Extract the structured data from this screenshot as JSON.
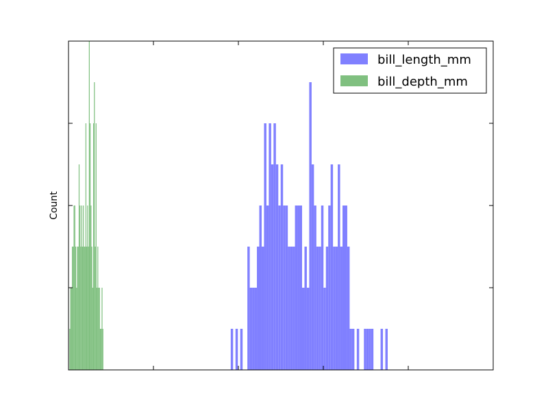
{
  "chart_data": {
    "type": "histogram",
    "title": "",
    "xlabel": "",
    "ylabel": "Count",
    "x_tick_labels_shown": false,
    "y_tick_labels_shown": false,
    "ylim": [
      0,
      8
    ],
    "grid": false,
    "legend_position": "top-right",
    "series": [
      {
        "name": "bill_length_mm",
        "color": "#8080ff",
        "bin_start": 32.1,
        "bin_width": 0.28,
        "counts": [
          1,
          0,
          1,
          0,
          1,
          0,
          0,
          3,
          2,
          2,
          2,
          3,
          4,
          3,
          6,
          4,
          6,
          5,
          6,
          5,
          4,
          5,
          4,
          4,
          3,
          3,
          3,
          4,
          4,
          4,
          2,
          3,
          2,
          7,
          5,
          4,
          3,
          3,
          4,
          2,
          3,
          4,
          5,
          3,
          3,
          5,
          3,
          4,
          4,
          3,
          1,
          1,
          0,
          1,
          0,
          0,
          1,
          1,
          1,
          1,
          0,
          0,
          0,
          1,
          0,
          1
        ]
      },
      {
        "name": "bill_depth_mm",
        "color": "#80c080",
        "bin_start": 13.1,
        "bin_width": 0.1,
        "counts": [
          1,
          2,
          2,
          3,
          3,
          4,
          4,
          3,
          2,
          3,
          3,
          5,
          4,
          3,
          4,
          3,
          4,
          3,
          3,
          6,
          3,
          4,
          3,
          8,
          6,
          4,
          3,
          2,
          6,
          7,
          3,
          6,
          2,
          3,
          2,
          2,
          1,
          1,
          2,
          1
        ]
      }
    ]
  }
}
